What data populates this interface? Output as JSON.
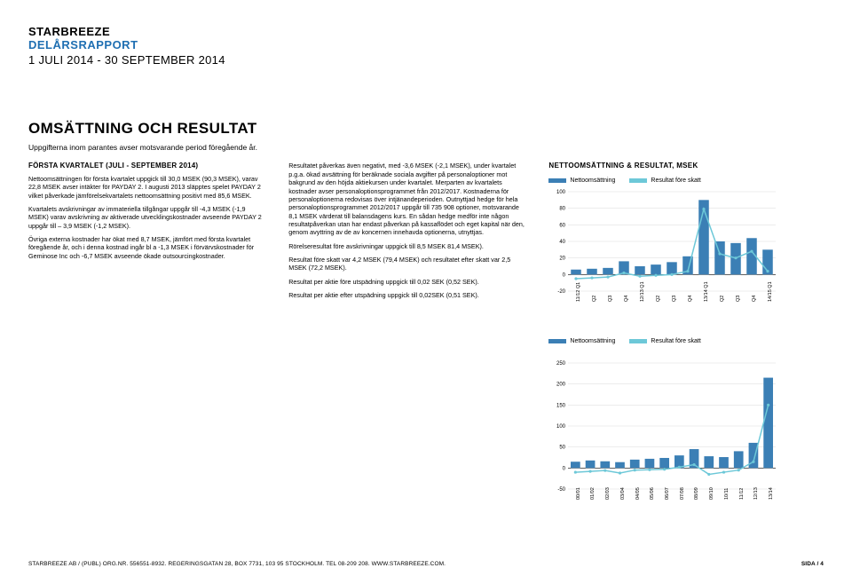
{
  "header": {
    "company": "STARBREEZE",
    "report": "DELÅRSRAPPORT",
    "period": "1 JULI 2014 - 30 SEPTEMBER 2014"
  },
  "title": "OMSÄTTNING OCH RESULTAT",
  "intro": "Uppgifterna inom parantes avser motsvarande period föregående år.",
  "col1": {
    "heading": "FÖRSTA KVARTALET (JULI - SEPTEMBER 2014)",
    "p1": "Nettoomsättningen för första kvartalet uppgick till 30,0 MSEK (90,3 MSEK), varav 22,8 MSEK avser intäkter för PAYDAY 2. I augusti 2013 släpptes spelet PAYDAY 2 vilket påverkade jämförelsekvartalets nettoomsättning positivt med 85,6 MSEK.",
    "p2": "Kvartalets avskrivningar av immateriella tillgångar uppgår till -4,3 MSEK (-1,9 MSEK) varav avskrivning av aktiverade utvecklingskostnader avseende PAYDAY 2 uppgår till – 3,9 MSEK (-1,2 MSEK).",
    "p3": "Övriga externa kostnader har ökat med 8,7 MSEK, jämfört med första kvartalet föregående år, och i denna kostnad ingår bl a -1,3 MSEK i förvärvskostnader för Geminose Inc och -6,7 MSEK avseende ökade outsourcingkostnader."
  },
  "col2": {
    "p1": "Resultatet påverkas även negativt, med -3,6 MSEK (-2,1 MSEK), under kvartalet p.g.a. ökad avsättning för beräknade sociala avgifter på personaloptioner mot bakgrund av den höjda aktiekursen under kvartalet. Merparten av kvartalets kostnader avser personaloptionsprogrammet från 2012/2017. Kostnaderna för personaloptionerna redovisas över intjänandeperioden. Outnyttjad hedge för hela personaloptionsprogrammet 2012/2017 uppgår till 735 908 optioner, motsvarande 8,1 MSEK värderat till balansdagens kurs. En sådan hedge medför inte någon resultatpåverkan utan har endast påverkan på kassaflödet och eget kapital när den, genom avyttring av de av koncernen innehavda optionerna, utnyttjas.",
    "p2": "Rörelseresultat före avskrivningar uppgick till 8,5 MSEK 81,4 MSEK).",
    "p3": "Resultat före skatt var 4,2 MSEK (79,4 MSEK) och resultatet efter skatt var 2,5 MSEK (72,2 MSEK).",
    "p4": "Resultat per aktie före utspädning uppgick till 0,02 SEK (0,52 SEK).",
    "p5": "Resultat per aktie efter utspädning uppgick till 0,02SEK (0,51 SEK)."
  },
  "chart1": {
    "title": "NETTOOMSÄTTNING & RESULTAT, MSEK",
    "legend": [
      {
        "label": "Nettoomsättning",
        "color": "#3b7fb5"
      },
      {
        "label": "Resultat före skatt",
        "color": "#6dc8d8"
      }
    ],
    "type": "bar+line",
    "ylim": [
      -20,
      100
    ],
    "ytick_step": 20,
    "categories": [
      "11/12 Q1",
      "Q2",
      "Q3",
      "Q4",
      "12/13 Q1",
      "Q2",
      "Q3",
      "Q4",
      "13/14 Q1",
      "Q2",
      "Q3",
      "Q4",
      "14/15 Q1"
    ],
    "bar_values": [
      6,
      7,
      8,
      16,
      10,
      12,
      15,
      22,
      90,
      40,
      38,
      44,
      30
    ],
    "line_values": [
      -5,
      -4,
      -3,
      2,
      -2,
      -1,
      0,
      4,
      79,
      25,
      20,
      28,
      4
    ],
    "bar_color": "#3b7fb5",
    "line_color": "#6dc8d8",
    "background": "#ffffff",
    "grid_color": "#cfcfcf",
    "axis_fontsize": 6
  },
  "chart2": {
    "legend": [
      {
        "label": "Nettoomsättning",
        "color": "#3b7fb5"
      },
      {
        "label": "Resultat före skatt",
        "color": "#6dc8d8"
      }
    ],
    "type": "bar+line",
    "ylim": [
      -50,
      250
    ],
    "ytick_step": 50,
    "categories": [
      "00/01",
      "01/02",
      "02/03",
      "03/04",
      "04/05",
      "05/06",
      "06/07",
      "07/08",
      "08/09",
      "09/10",
      "10/11",
      "11/12",
      "12/13",
      "13/14"
    ],
    "bar_values": [
      15,
      18,
      16,
      14,
      20,
      22,
      24,
      30,
      45,
      28,
      26,
      40,
      60,
      215
    ],
    "line_values": [
      -10,
      -8,
      -6,
      -12,
      -5,
      -4,
      -3,
      2,
      8,
      -15,
      -10,
      -5,
      15,
      150
    ],
    "bar_color": "#3b7fb5",
    "line_color": "#6dc8d8",
    "background": "#ffffff",
    "grid_color": "#cfcfcf",
    "axis_fontsize": 6
  },
  "footer": {
    "left": "STARBREEZE AB / (PUBL) ORG.NR. 556551-8932. REGERINGSGATAN 28, BOX 7731, 103 95 STOCKHOLM. TEL 08-209 208. WWW.STARBREEZE.COM.",
    "right": "SIDA / 4"
  }
}
